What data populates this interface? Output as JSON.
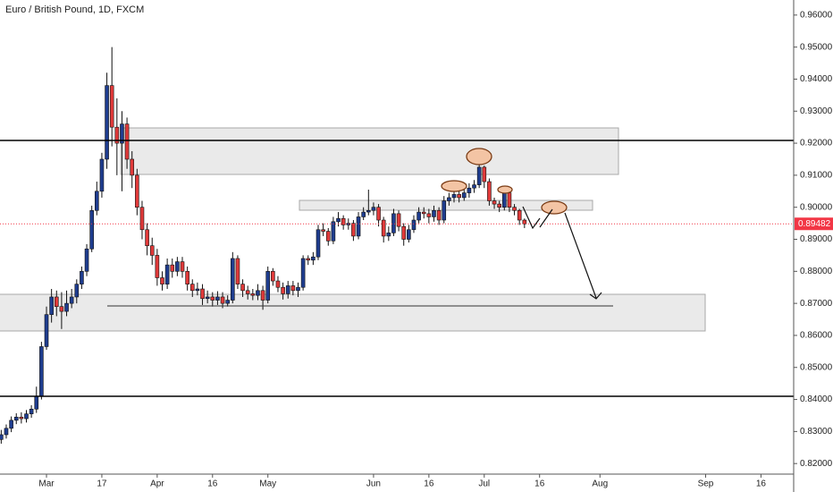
{
  "chart_data": {
    "type": "candlestick",
    "title": "Euro / British Pound, 1D, FXCM",
    "up_color": "#1f3d8f",
    "down_color": "#e03a3a",
    "xlim": [
      -9.24,
      148.5
    ],
    "ylim": [
      0.8167,
      0.9647
    ],
    "xticks": [
      {
        "value": 0,
        "label": "Mar"
      },
      {
        "value": 11,
        "label": "17"
      },
      {
        "value": 22,
        "label": "Apr"
      },
      {
        "value": 33,
        "label": "16"
      },
      {
        "value": 44,
        "label": "May"
      },
      {
        "value": 65,
        "label": "Jun"
      },
      {
        "value": 76,
        "label": "16"
      },
      {
        "value": 87,
        "label": "Jul"
      },
      {
        "value": 98,
        "label": "16"
      },
      {
        "value": 110,
        "label": "Aug"
      },
      {
        "value": 131,
        "label": "Sep"
      },
      {
        "value": 142,
        "label": "16"
      }
    ],
    "yticks": [
      {
        "value": 0.82,
        "label": "0.82000"
      },
      {
        "value": 0.83,
        "label": "0.83000"
      },
      {
        "value": 0.84,
        "label": "0.84000"
      },
      {
        "value": 0.85,
        "label": "0.85000"
      },
      {
        "value": 0.86,
        "label": "0.86000"
      },
      {
        "value": 0.87,
        "label": "0.87000"
      },
      {
        "value": 0.88,
        "label": "0.88000"
      },
      {
        "value": 0.89,
        "label": "0.89000"
      },
      {
        "value": 0.9,
        "label": "0.90000"
      },
      {
        "value": 0.91,
        "label": "0.91000"
      },
      {
        "value": 0.92,
        "label": "0.92000"
      },
      {
        "value": 0.93,
        "label": "0.93000"
      },
      {
        "value": 0.94,
        "label": "0.94000"
      },
      {
        "value": 0.95,
        "label": "0.95000"
      },
      {
        "value": 0.96,
        "label": "0.96000"
      }
    ],
    "last_price": {
      "value": 0.89482,
      "label": "0.89482"
    },
    "x": [
      -9,
      -8,
      -7,
      -6,
      -5,
      -4,
      -3,
      -2,
      -1,
      0,
      1,
      2,
      3,
      4,
      5,
      6,
      7,
      8,
      9,
      10,
      11,
      12,
      13,
      14,
      15,
      16,
      17,
      18,
      19,
      20,
      21,
      22,
      23,
      24,
      25,
      26,
      27,
      28,
      29,
      30,
      31,
      32,
      33,
      34,
      35,
      36,
      37,
      38,
      39,
      40,
      41,
      42,
      43,
      44,
      45,
      46,
      47,
      48,
      49,
      50,
      51,
      52,
      53,
      54,
      55,
      56,
      57,
      58,
      59,
      60,
      61,
      62,
      63,
      64,
      65,
      66,
      67,
      68,
      69,
      70,
      71,
      72,
      73,
      74,
      75,
      76,
      77,
      78,
      79,
      80,
      81,
      82,
      83,
      84,
      85,
      86,
      87,
      88,
      89,
      90,
      91,
      92,
      93,
      94,
      95
    ],
    "open": [
      0.8275,
      0.829,
      0.831,
      0.8335,
      0.8345,
      0.834,
      0.8355,
      0.837,
      0.841,
      0.8565,
      0.8665,
      0.872,
      0.869,
      0.8675,
      0.87,
      0.872,
      0.876,
      0.88,
      0.887,
      0.899,
      0.905,
      0.915,
      0.938,
      0.925,
      0.92,
      0.926,
      0.915,
      0.91,
      0.9,
      0.893,
      0.888,
      0.885,
      0.878,
      0.876,
      0.882,
      0.88,
      0.883,
      0.88,
      0.876,
      0.874,
      0.8745,
      0.8715,
      0.872,
      0.871,
      0.872,
      0.87,
      0.871,
      0.884,
      0.876,
      0.874,
      0.873,
      0.8725,
      0.874,
      0.871,
      0.88,
      0.877,
      0.875,
      0.873,
      0.8755,
      0.874,
      0.875,
      0.884,
      0.8835,
      0.8845,
      0.893,
      0.8925,
      0.8895,
      0.8955,
      0.8965,
      0.8945,
      0.895,
      0.891,
      0.897,
      0.8985,
      0.899,
      0.9,
      0.896,
      0.891,
      0.892,
      0.898,
      0.894,
      0.89,
      0.893,
      0.896,
      0.8985,
      0.898,
      0.897,
      0.899,
      0.896,
      0.902,
      0.903,
      0.904,
      0.903,
      0.9045,
      0.906,
      0.907,
      0.9125,
      0.908,
      0.902,
      0.901,
      0.9,
      0.9045,
      0.9,
      0.899,
      0.896
    ],
    "high": [
      0.8305,
      0.8322,
      0.8347,
      0.8357,
      0.836,
      0.8367,
      0.8382,
      0.844,
      0.858,
      0.869,
      0.8745,
      0.874,
      0.8735,
      0.874,
      0.8745,
      0.8775,
      0.8815,
      0.8885,
      0.9005,
      0.908,
      0.917,
      0.942,
      0.95,
      0.934,
      0.93,
      0.928,
      0.9175,
      0.912,
      0.902,
      0.895,
      0.8905,
      0.887,
      0.88,
      0.884,
      0.884,
      0.8845,
      0.8845,
      0.8815,
      0.8775,
      0.8765,
      0.876,
      0.874,
      0.8735,
      0.8738,
      0.8735,
      0.8725,
      0.886,
      0.885,
      0.8775,
      0.8755,
      0.8745,
      0.876,
      0.8755,
      0.8815,
      0.881,
      0.8785,
      0.8765,
      0.877,
      0.877,
      0.8765,
      0.885,
      0.885,
      0.886,
      0.8945,
      0.895,
      0.8935,
      0.897,
      0.8985,
      0.8975,
      0.8965,
      0.896,
      0.8985,
      0.9,
      0.9055,
      0.9015,
      0.901,
      0.897,
      0.894,
      0.8995,
      0.899,
      0.895,
      0.8945,
      0.8975,
      0.9,
      0.9,
      0.8995,
      0.9005,
      0.9,
      0.9035,
      0.9045,
      0.9055,
      0.905,
      0.906,
      0.9075,
      0.9085,
      0.915,
      0.913,
      0.909,
      0.903,
      0.902,
      0.906,
      0.905,
      0.901,
      0.8995,
      0.8965
    ],
    "low": [
      0.8262,
      0.8278,
      0.8298,
      0.8323,
      0.8325,
      0.8328,
      0.8343,
      0.8358,
      0.84,
      0.8555,
      0.864,
      0.866,
      0.862,
      0.866,
      0.8685,
      0.87,
      0.8745,
      0.8785,
      0.886,
      0.8975,
      0.903,
      0.912,
      0.919,
      0.91,
      0.905,
      0.912,
      0.906,
      0.8975,
      0.89,
      0.885,
      0.882,
      0.8755,
      0.874,
      0.8745,
      0.878,
      0.8785,
      0.878,
      0.874,
      0.872,
      0.8725,
      0.8695,
      0.87,
      0.869,
      0.8695,
      0.8685,
      0.869,
      0.87,
      0.8745,
      0.872,
      0.8712,
      0.871,
      0.871,
      0.868,
      0.87,
      0.8755,
      0.8735,
      0.8712,
      0.8715,
      0.8725,
      0.872,
      0.874,
      0.882,
      0.882,
      0.8835,
      0.891,
      0.888,
      0.8885,
      0.894,
      0.893,
      0.893,
      0.8895,
      0.89,
      0.896,
      0.8975,
      0.8975,
      0.894,
      0.889,
      0.8895,
      0.891,
      0.8925,
      0.888,
      0.889,
      0.892,
      0.895,
      0.8965,
      0.895,
      0.8955,
      0.8945,
      0.895,
      0.9005,
      0.9015,
      0.9015,
      0.902,
      0.903,
      0.9045,
      0.906,
      0.906,
      0.9005,
      0.8995,
      0.8985,
      0.899,
      0.8985,
      0.8975,
      0.8945,
      0.8935
    ],
    "close": [
      0.829,
      0.831,
      0.8335,
      0.8345,
      0.834,
      0.8355,
      0.837,
      0.841,
      0.8565,
      0.8665,
      0.872,
      0.869,
      0.8675,
      0.87,
      0.872,
      0.876,
      0.88,
      0.887,
      0.899,
      0.905,
      0.915,
      0.938,
      0.925,
      0.92,
      0.926,
      0.915,
      0.91,
      0.9,
      0.893,
      0.888,
      0.885,
      0.878,
      0.876,
      0.882,
      0.88,
      0.883,
      0.88,
      0.876,
      0.874,
      0.8745,
      0.8715,
      0.872,
      0.871,
      0.872,
      0.87,
      0.871,
      0.884,
      0.876,
      0.874,
      0.873,
      0.8725,
      0.874,
      0.871,
      0.88,
      0.877,
      0.875,
      0.873,
      0.8755,
      0.874,
      0.875,
      0.884,
      0.8835,
      0.8845,
      0.893,
      0.8925,
      0.8895,
      0.8955,
      0.8965,
      0.8945,
      0.895,
      0.891,
      0.897,
      0.8985,
      0.899,
      0.9,
      0.896,
      0.891,
      0.892,
      0.898,
      0.894,
      0.89,
      0.893,
      0.896,
      0.8985,
      0.898,
      0.897,
      0.899,
      0.896,
      0.902,
      0.903,
      0.904,
      0.903,
      0.9045,
      0.906,
      0.907,
      0.9125,
      0.908,
      0.902,
      0.901,
      0.9,
      0.9045,
      0.9,
      0.899,
      0.896,
      0.8948
    ]
  }
}
